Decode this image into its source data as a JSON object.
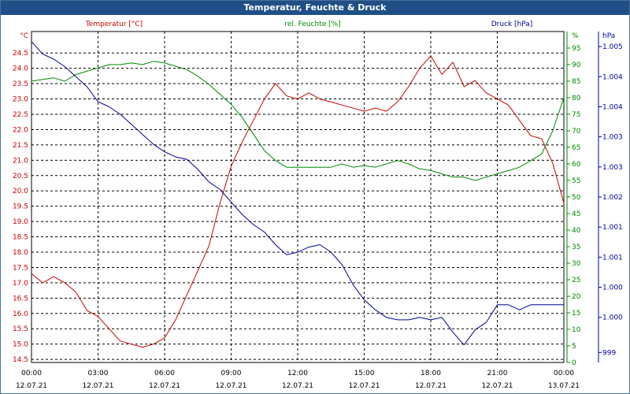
{
  "window": {
    "title": "Temperatur, Feuchte & Druck"
  },
  "chart_data": {
    "type": "line",
    "title": "Temperatur, Feuchte & Druck",
    "x_ticks": [
      {
        "time": "00:00",
        "date": "12.07.21"
      },
      {
        "time": "03:00",
        "date": "12.07.21"
      },
      {
        "time": "06:00",
        "date": "12.07.21"
      },
      {
        "time": "09:00",
        "date": "12.07.21"
      },
      {
        "time": "12:00",
        "date": "12.07.21"
      },
      {
        "time": "15:00",
        "date": "12.07.21"
      },
      {
        "time": "18:00",
        "date": "12.07.21"
      },
      {
        "time": "21:00",
        "date": "12.07.21"
      },
      {
        "time": "00:00",
        "date": "13.07.21"
      }
    ],
    "xlim_hours": [
      0,
      24
    ],
    "grid": true,
    "axes": {
      "temperature": {
        "label": "Temperatur [°C]",
        "unit": "°C",
        "color": "#cc0000",
        "side": "left",
        "ylim": [
          14.4,
          25.2
        ],
        "ticks": [
          "14.5",
          "15.0",
          "15.5",
          "16.0",
          "16.5",
          "17.0",
          "17.5",
          "18.0",
          "18.5",
          "19.0",
          "19.5",
          "20.0",
          "20.5",
          "21.0",
          "21.5",
          "22.0",
          "22.5",
          "23.0",
          "23.5",
          "24.0",
          "24.5"
        ]
      },
      "humidity": {
        "label": "rel. Feuchte [%]",
        "unit": "%",
        "color": "#008800",
        "side": "right-inner",
        "ylim": [
          0,
          100
        ],
        "ticks": [
          "0",
          "5",
          "10",
          "15",
          "20",
          "25",
          "30",
          "35",
          "40",
          "45",
          "50",
          "55",
          "60",
          "65",
          "70",
          "75",
          "80",
          "85",
          "90",
          "95"
        ]
      },
      "pressure": {
        "label": "Druck [hPa]",
        "unit": "hPa",
        "color": "#000099",
        "side": "right-outer",
        "ylim": [
          998.8,
          1005.4
        ],
        "ticks": [
          {
            "v": 999.0,
            "t": "999"
          },
          {
            "v": 999.7,
            "t": "1.000"
          },
          {
            "v": 1000.3,
            "t": "1.000"
          },
          {
            "v": 1000.9,
            "t": "1.001"
          },
          {
            "v": 1001.5,
            "t": "1.001"
          },
          {
            "v": 1002.1,
            "t": "1.002"
          },
          {
            "v": 1002.7,
            "t": "1.003"
          },
          {
            "v": 1003.3,
            "t": "1.003"
          },
          {
            "v": 1003.9,
            "t": "1.004"
          },
          {
            "v": 1004.5,
            "t": "1.004"
          },
          {
            "v": 1005.1,
            "t": "1.005"
          },
          {
            "v": 1005.7,
            "t": "1.005"
          }
        ]
      }
    },
    "series": [
      {
        "name": "Temperatur [°C]",
        "axis": "temperature",
        "color": "#cc0000",
        "x": [
          0,
          0.5,
          1,
          1.5,
          2,
          2.5,
          3,
          3.5,
          4,
          4.5,
          5,
          5.5,
          6,
          6.5,
          7,
          7.5,
          8,
          8.5,
          9,
          9.5,
          10,
          10.5,
          11,
          11.5,
          12,
          12.5,
          13,
          13.5,
          14,
          14.5,
          15,
          15.5,
          16,
          16.5,
          17,
          17.5,
          18,
          18.5,
          19,
          19.5,
          20,
          20.5,
          21,
          21.5,
          22,
          22.5,
          23,
          23.5,
          24
        ],
        "values": [
          17.3,
          17.0,
          17.2,
          17.0,
          16.7,
          16.1,
          15.9,
          15.5,
          15.1,
          15.0,
          14.9,
          15.0,
          15.2,
          15.8,
          16.6,
          17.4,
          18.2,
          19.6,
          20.8,
          21.6,
          22.3,
          23.0,
          23.5,
          23.1,
          23.0,
          23.2,
          23.0,
          22.9,
          22.8,
          22.7,
          22.6,
          22.7,
          22.6,
          22.9,
          23.4,
          24.0,
          24.4,
          23.8,
          24.2,
          23.4,
          23.6,
          23.2,
          23.0,
          22.8,
          22.3,
          21.8,
          21.7,
          20.9,
          19.6
        ]
      },
      {
        "name": "rel. Feuchte [%]",
        "axis": "humidity",
        "color": "#008800",
        "x": [
          0,
          0.5,
          1,
          1.5,
          2,
          2.5,
          3,
          3.5,
          4,
          4.5,
          5,
          5.5,
          6,
          6.5,
          7,
          7.5,
          8,
          8.5,
          9,
          9.5,
          10,
          10.5,
          11,
          11.5,
          12,
          12.5,
          13,
          13.5,
          14,
          14.5,
          15,
          15.5,
          16,
          16.5,
          17,
          17.5,
          18,
          18.5,
          19,
          19.5,
          20,
          20.5,
          21,
          21.5,
          22,
          22.5,
          23,
          23.5,
          24
        ],
        "values": [
          85,
          85.5,
          86,
          85,
          87,
          88,
          89,
          90,
          90,
          90.5,
          90,
          91,
          90.5,
          89.5,
          88.5,
          86.5,
          84,
          81,
          78,
          74,
          69,
          64,
          61,
          59,
          59,
          59,
          59,
          59,
          60,
          59,
          59.5,
          59,
          60,
          61,
          60,
          58.5,
          58,
          57,
          56,
          56,
          55,
          56,
          57,
          58,
          59,
          61,
          63,
          70,
          80
        ]
      },
      {
        "name": "Druck [hPa]",
        "axis": "pressure",
        "color": "#000099",
        "x": [
          0,
          0.5,
          1,
          1.5,
          2,
          2.5,
          3,
          3.5,
          4,
          4.5,
          5,
          5.5,
          6,
          6.5,
          7,
          7.5,
          8,
          8.5,
          9,
          9.5,
          10,
          10.5,
          11,
          11.5,
          12,
          12.5,
          13,
          13.5,
          14,
          14.5,
          15,
          15.5,
          16,
          16.5,
          17,
          17.5,
          18,
          18.5,
          19,
          19.5,
          20,
          20.5,
          21,
          21.5,
          22,
          22.5,
          23,
          23.5,
          24
        ],
        "values": [
          1005.2,
          1004.95,
          1004.85,
          1004.7,
          1004.5,
          1004.3,
          1004.0,
          1003.9,
          1003.75,
          1003.55,
          1003.35,
          1003.15,
          1003.0,
          1002.9,
          1002.85,
          1002.65,
          1002.4,
          1002.25,
          1002.0,
          1001.75,
          1001.55,
          1001.4,
          1001.15,
          1000.95,
          1001.0,
          1001.1,
          1001.15,
          1001.0,
          1000.75,
          1000.35,
          1000.05,
          999.85,
          999.7,
          999.65,
          999.65,
          999.7,
          999.65,
          999.7,
          999.4,
          999.15,
          999.45,
          999.6,
          999.95,
          999.95,
          999.85,
          999.95,
          999.95,
          999.95,
          999.95
        ]
      }
    ]
  }
}
